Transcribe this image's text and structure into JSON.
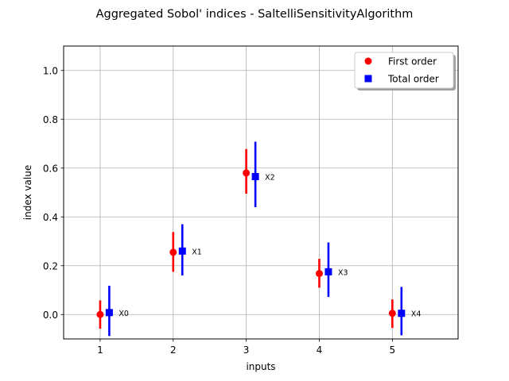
{
  "chart_data": {
    "type": "scatter",
    "title": "Aggregated Sobol' indices - SaltelliSensitivityAlgorithm",
    "xlabel": "inputs",
    "ylabel": "index value",
    "xlim": [
      0.5,
      5.9
    ],
    "ylim": [
      -0.1,
      1.1
    ],
    "xticks": [
      1,
      2,
      3,
      4,
      5
    ],
    "xtick_labels": [
      "1",
      "2",
      "3",
      "4",
      "5"
    ],
    "yticks": [
      0.0,
      0.2,
      0.4,
      0.6,
      0.8,
      1.0
    ],
    "ytick_labels": [
      "0.0",
      "0.2",
      "0.4",
      "0.6",
      "0.8",
      "1.0"
    ],
    "grid": true,
    "legend_position": "top-right",
    "inputs": [
      {
        "x": 1,
        "name": "X0"
      },
      {
        "x": 2,
        "name": "X1"
      },
      {
        "x": 3,
        "name": "X2"
      },
      {
        "x": 4,
        "name": "X3"
      },
      {
        "x": 5,
        "name": "X4"
      }
    ],
    "series": [
      {
        "name": "First order",
        "color": "#ff0000",
        "marker": "circle",
        "x_offset": 0,
        "values": [
          0.0,
          0.255,
          0.58,
          0.168,
          0.005
        ],
        "ci_low": [
          -0.058,
          0.175,
          0.495,
          0.11,
          -0.055
        ],
        "ci_high": [
          0.058,
          0.338,
          0.678,
          0.228,
          0.062
        ]
      },
      {
        "name": "Total order",
        "color": "#0000ff",
        "marker": "square",
        "x_offset": 0.125,
        "values": [
          0.008,
          0.26,
          0.565,
          0.175,
          0.005
        ],
        "ci_low": [
          -0.088,
          0.16,
          0.44,
          0.072,
          -0.085
        ],
        "ci_high": [
          0.118,
          0.37,
          0.708,
          0.295,
          0.113
        ]
      }
    ]
  }
}
